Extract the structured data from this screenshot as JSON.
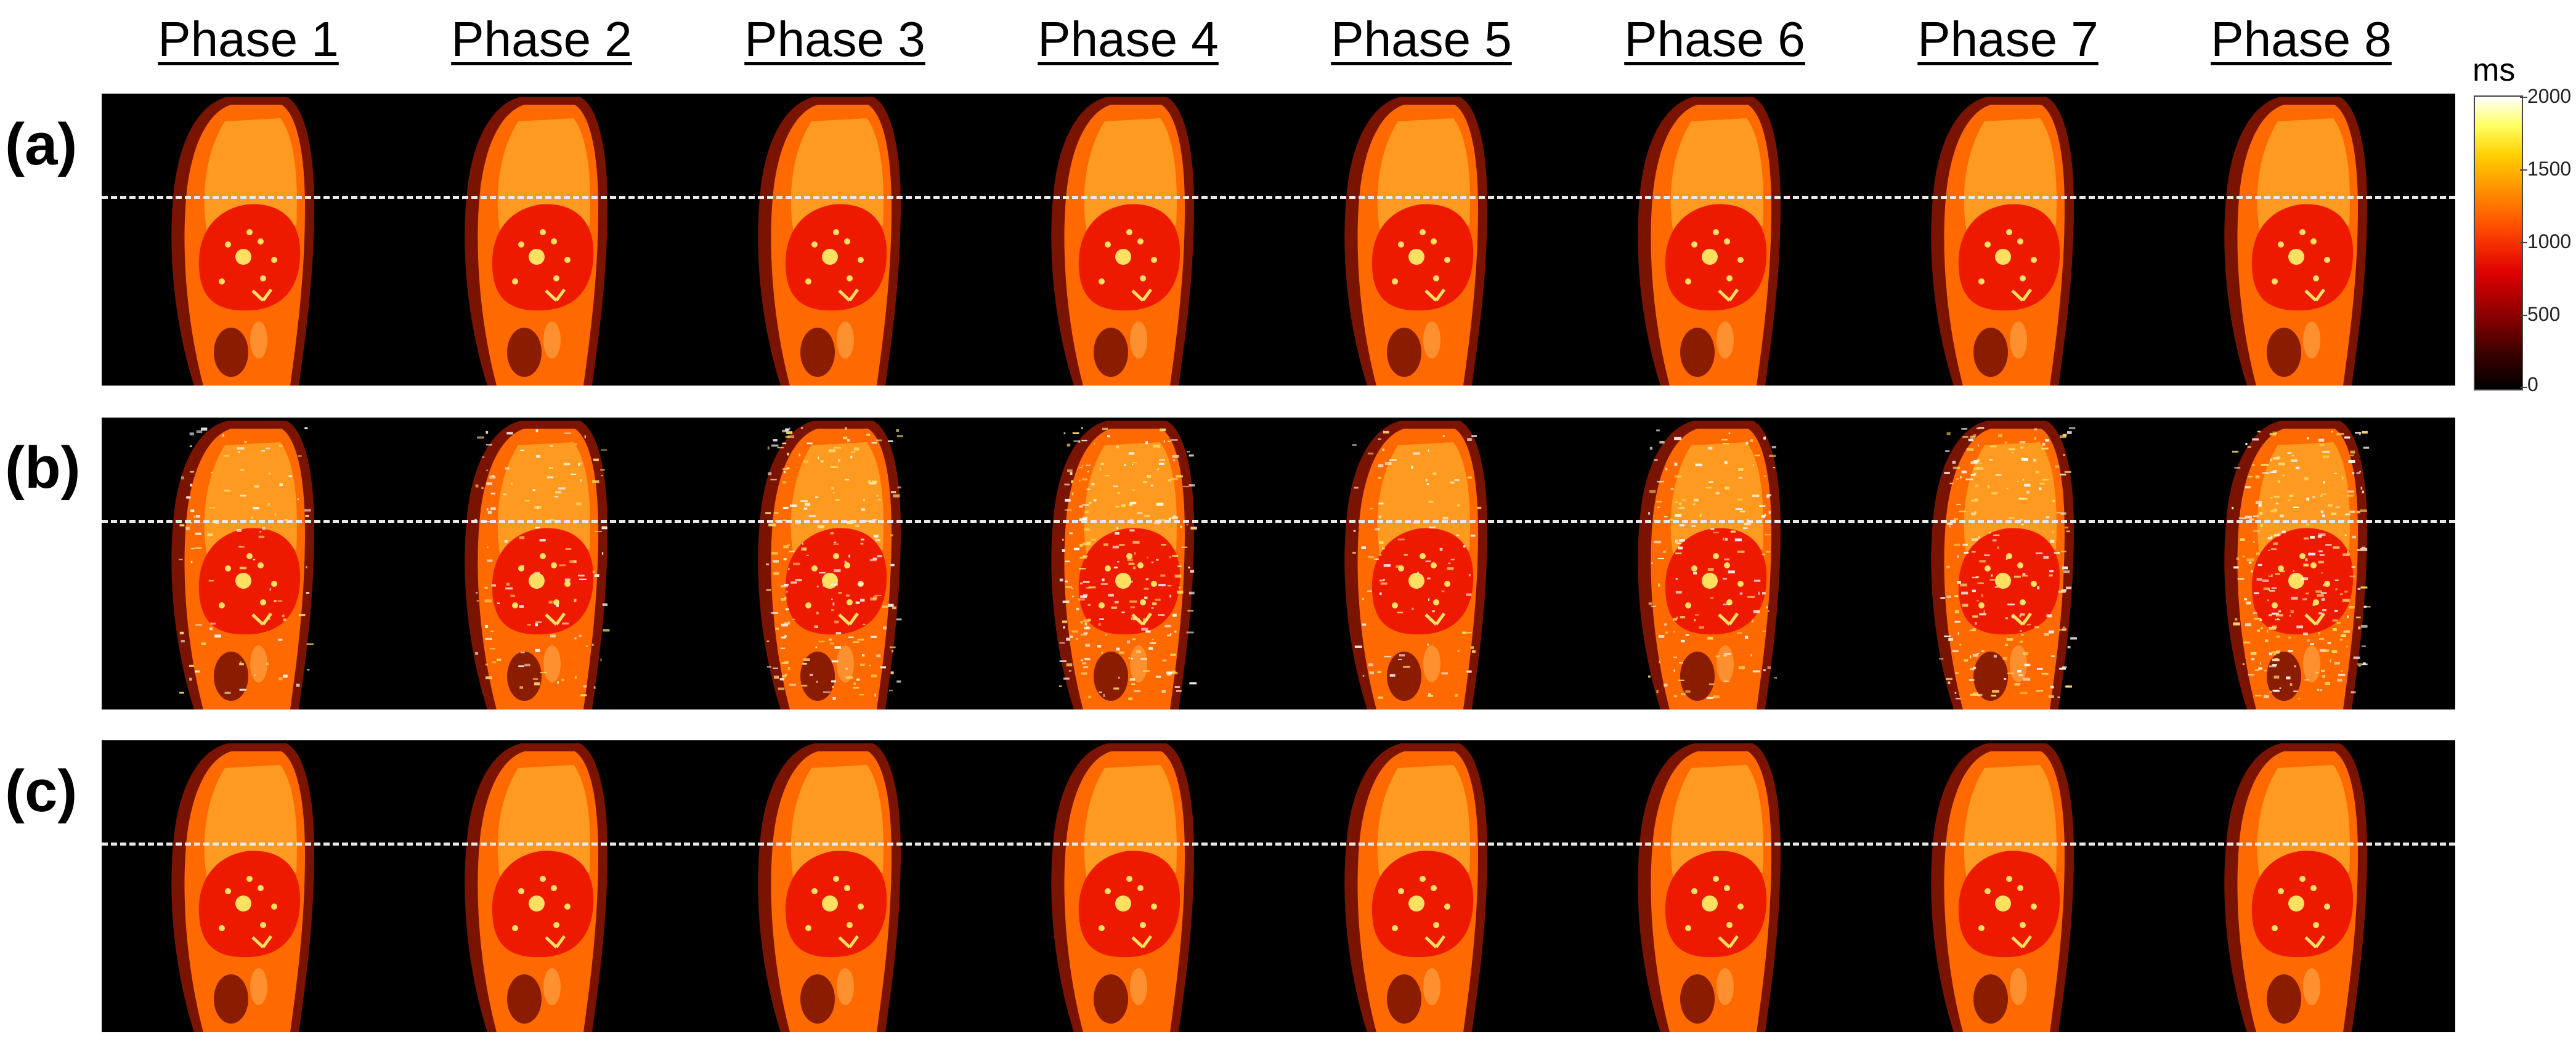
{
  "phases": [
    "Phase 1",
    "Phase 2",
    "Phase 3",
    "Phase 4",
    "Phase 5",
    "Phase 6",
    "Phase 7",
    "Phase 8"
  ],
  "rows": [
    {
      "label": "(a)",
      "noise": [
        0,
        0,
        0,
        0,
        0,
        0,
        0,
        0
      ]
    },
    {
      "label": "(b)",
      "noise": [
        0.35,
        0.45,
        0.75,
        0.9,
        0.35,
        0.55,
        0.8,
        1.0
      ]
    },
    {
      "label": "(c)",
      "noise": [
        0,
        0,
        0,
        0,
        0,
        0,
        0,
        0
      ]
    }
  ],
  "colorbar": {
    "unit": "ms",
    "ticks": [
      "2000",
      "1500",
      "1000",
      "500",
      "0"
    ]
  },
  "colors": {
    "background": "#000000",
    "tissue_outer": "#7a1400",
    "tissue_mid": "#ff6a00",
    "lung": "#ff9a20",
    "heart": "#ee1a00",
    "vessel": "#ffe060",
    "guide_line": "#e8e8e8"
  }
}
